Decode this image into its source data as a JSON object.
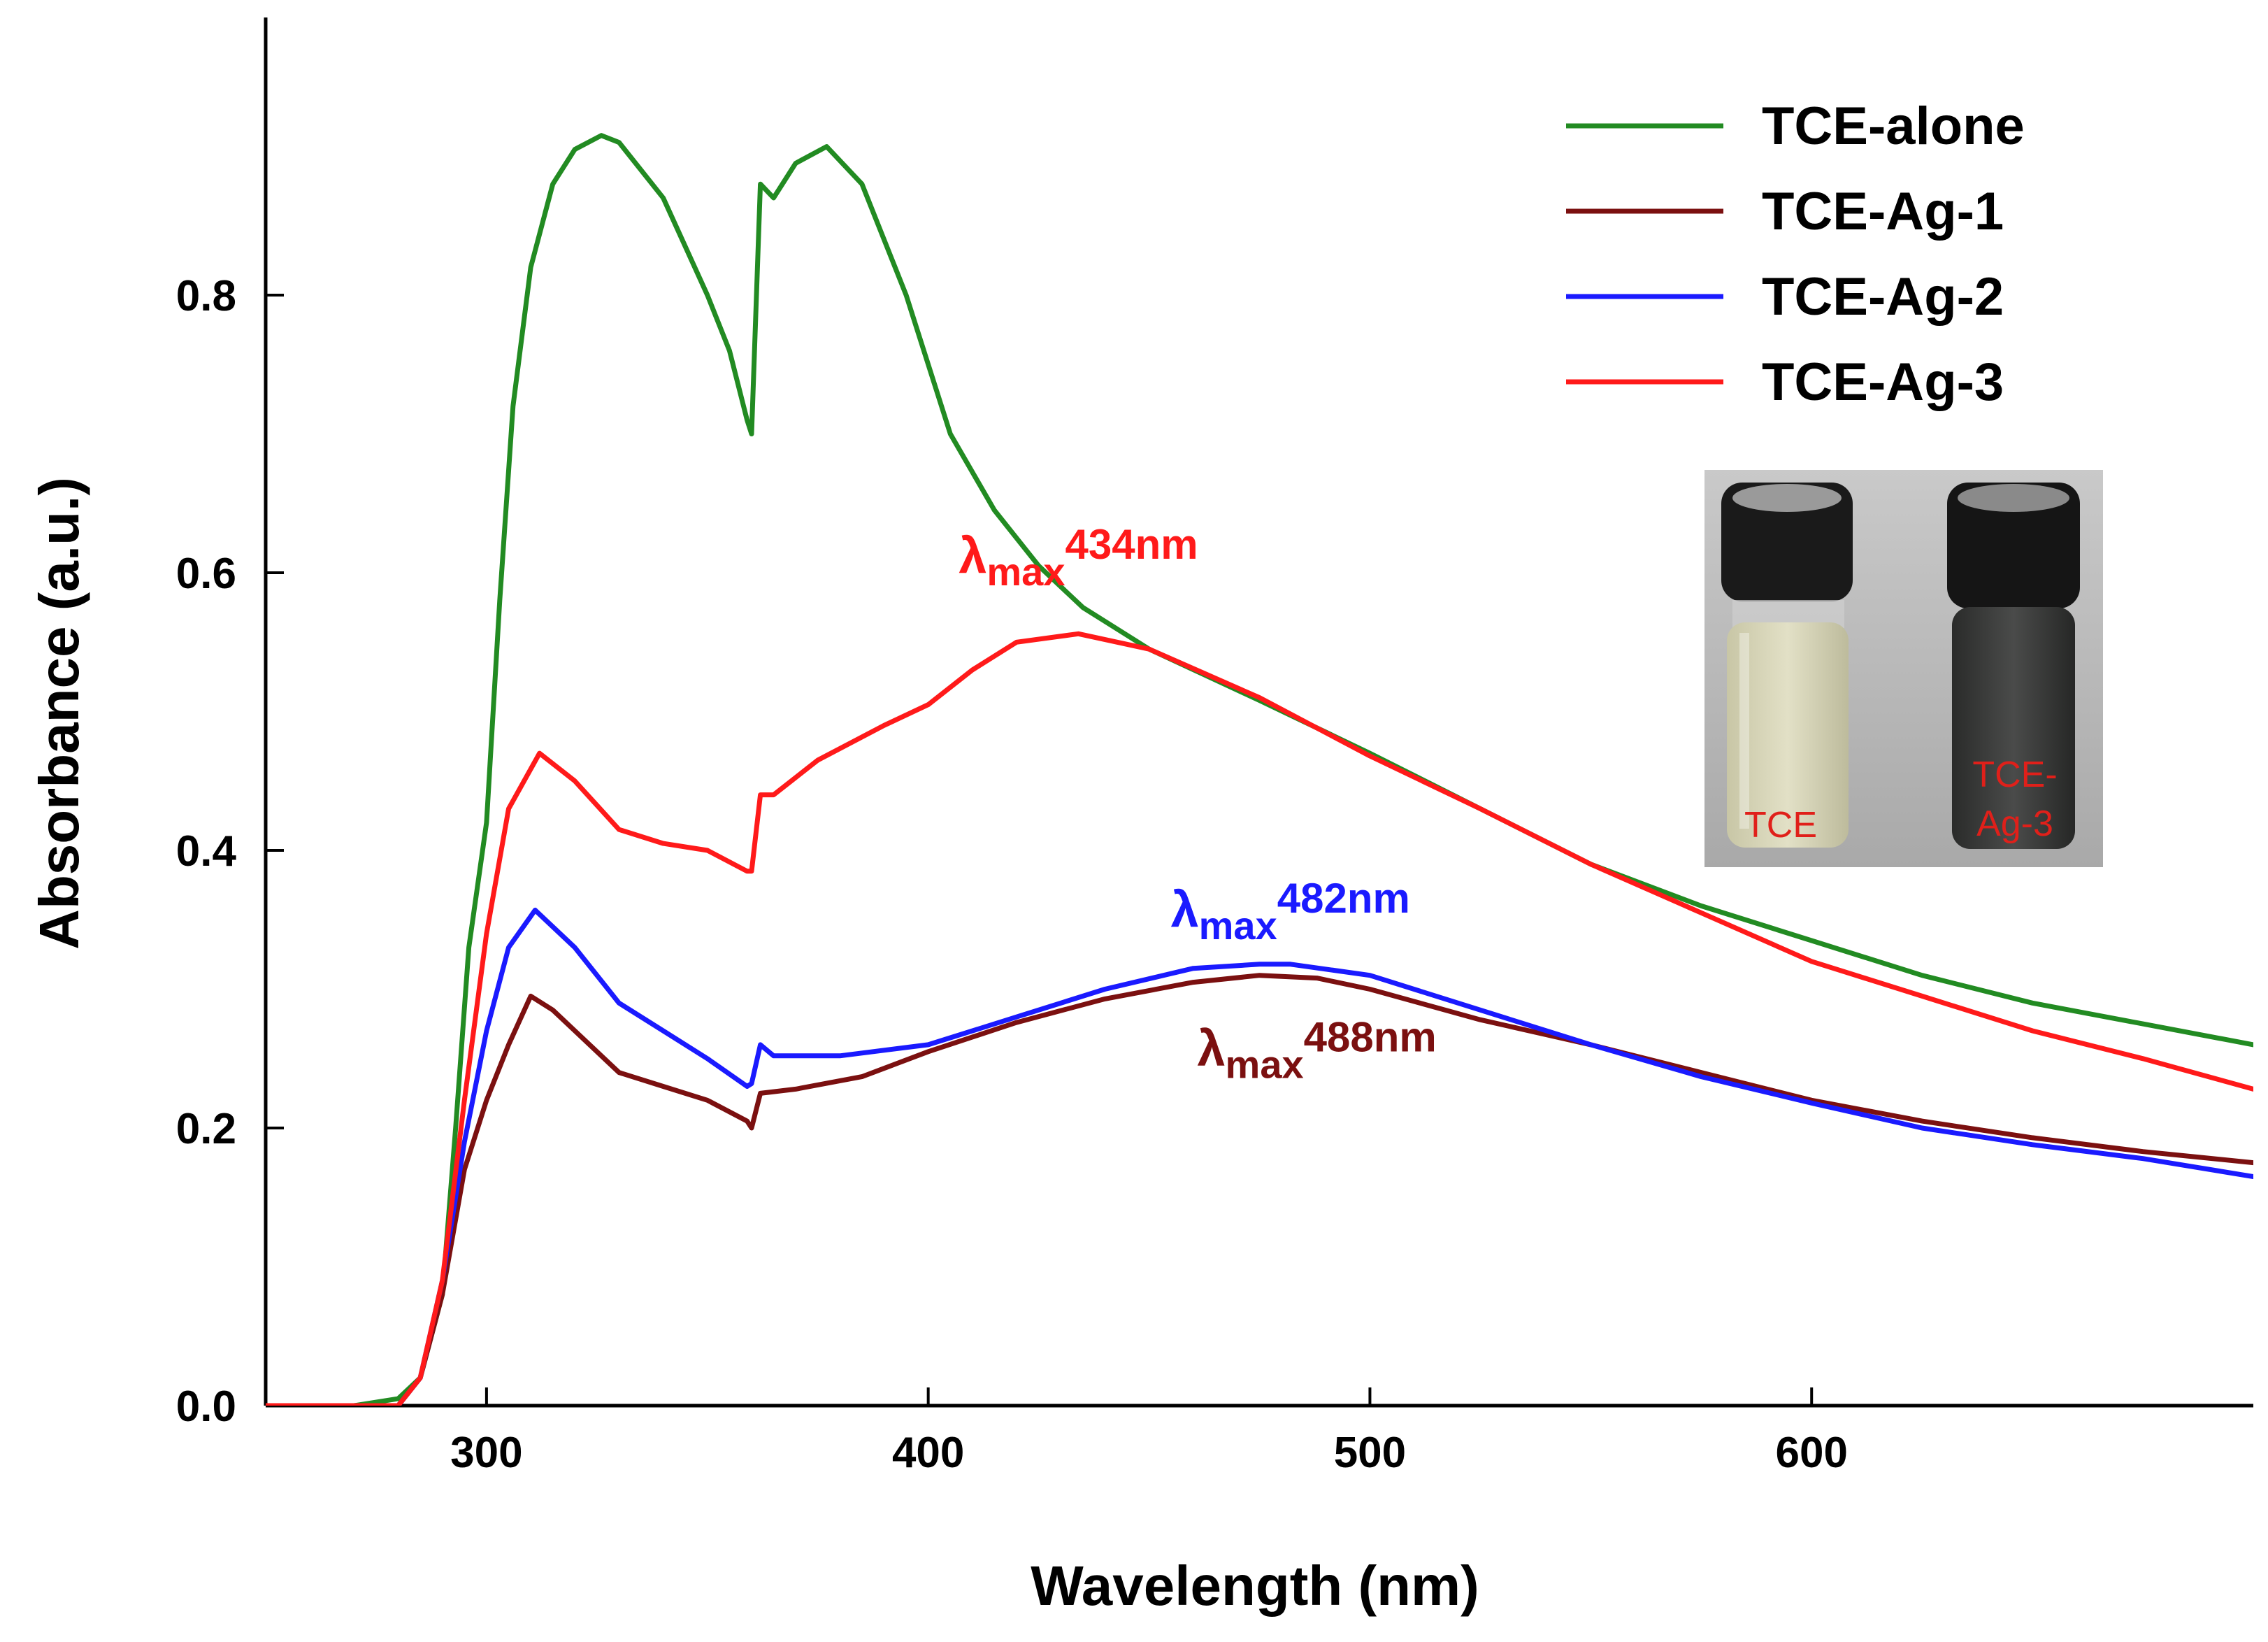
{
  "chart_data": {
    "type": "line",
    "title": "",
    "xlabel": "Wavelength (nm)",
    "ylabel": "Absorbance (a.u.)",
    "xlim": [
      250,
      700
    ],
    "ylim": [
      0,
      1.0
    ],
    "xticks": [
      300,
      400,
      500,
      600
    ],
    "yticks": [
      0.0,
      0.2,
      0.4,
      0.6,
      0.8
    ],
    "xtick_labels": [
      "300",
      "400",
      "500",
      "600"
    ],
    "ytick_labels": [
      "0.0",
      "0.2",
      "0.4",
      "0.6",
      "0.8"
    ],
    "legend_position": "top-right",
    "series": [
      {
        "name": "TCE-alone",
        "color": "#228b22",
        "x": [
          250,
          270,
          280,
          285,
          290,
          293,
          296,
          300,
          303,
          306,
          310,
          315,
          320,
          326,
          330,
          340,
          350,
          355,
          359,
          360,
          362,
          365,
          370,
          377,
          385,
          395,
          405,
          415,
          425,
          435,
          450,
          475,
          500,
          525,
          550,
          575,
          600,
          625,
          650,
          675,
          700
        ],
        "y": [
          0.0,
          0.0,
          0.005,
          0.02,
          0.08,
          0.2,
          0.33,
          0.42,
          0.58,
          0.72,
          0.82,
          0.88,
          0.905,
          0.915,
          0.91,
          0.87,
          0.8,
          0.76,
          0.71,
          0.7,
          0.88,
          0.87,
          0.895,
          0.907,
          0.88,
          0.8,
          0.7,
          0.645,
          0.605,
          0.575,
          0.545,
          0.508,
          0.47,
          0.43,
          0.39,
          0.36,
          0.335,
          0.31,
          0.29,
          0.275,
          0.26
        ]
      },
      {
        "name": "TCE-Ag-1",
        "color": "#7b1010",
        "x": [
          250,
          270,
          280,
          285,
          290,
          295,
          300,
          305,
          310,
          315,
          320,
          330,
          340,
          350,
          359,
          360,
          362,
          370,
          385,
          400,
          420,
          440,
          460,
          475,
          488,
          500,
          525,
          550,
          575,
          600,
          625,
          650,
          675,
          700
        ],
        "y": [
          0.0,
          0.0,
          0.0,
          0.02,
          0.08,
          0.17,
          0.22,
          0.26,
          0.295,
          0.285,
          0.27,
          0.24,
          0.23,
          0.22,
          0.205,
          0.2,
          0.225,
          0.228,
          0.237,
          0.255,
          0.276,
          0.293,
          0.305,
          0.31,
          0.308,
          0.3,
          0.278,
          0.26,
          0.24,
          0.22,
          0.205,
          0.193,
          0.183,
          0.175
        ]
      },
      {
        "name": "TCE-Ag-2",
        "color": "#1a1aff",
        "x": [
          250,
          270,
          280,
          285,
          290,
          295,
          300,
          305,
          311,
          320,
          330,
          340,
          350,
          359,
          360,
          362,
          365,
          380,
          400,
          420,
          440,
          460,
          475,
          482,
          500,
          525,
          550,
          575,
          600,
          625,
          650,
          675,
          700
        ],
        "y": [
          0.0,
          0.0,
          0.0,
          0.02,
          0.09,
          0.19,
          0.27,
          0.33,
          0.357,
          0.33,
          0.29,
          0.27,
          0.25,
          0.23,
          0.232,
          0.26,
          0.252,
          0.252,
          0.26,
          0.28,
          0.3,
          0.315,
          0.318,
          0.318,
          0.31,
          0.285,
          0.26,
          0.237,
          0.218,
          0.2,
          0.188,
          0.178,
          0.165
        ]
      },
      {
        "name": "TCE-Ag-3",
        "color": "#ff1a1a",
        "x": [
          250,
          270,
          280,
          285,
          290,
          295,
          300,
          305,
          312,
          320,
          330,
          340,
          350,
          359,
          360,
          362,
          365,
          375,
          390,
          400,
          410,
          420,
          434,
          450,
          475,
          500,
          525,
          550,
          575,
          600,
          625,
          650,
          675,
          700
        ],
        "y": [
          0.0,
          0.0,
          0.0,
          0.02,
          0.09,
          0.22,
          0.34,
          0.43,
          0.47,
          0.45,
          0.415,
          0.405,
          0.4,
          0.385,
          0.385,
          0.44,
          0.44,
          0.465,
          0.49,
          0.505,
          0.53,
          0.55,
          0.556,
          0.545,
          0.51,
          0.468,
          0.43,
          0.39,
          0.355,
          0.32,
          0.295,
          0.27,
          0.25,
          0.228
        ]
      }
    ],
    "annotations": [
      {
        "symbol": "λ",
        "sub": "max",
        "text": "434nm",
        "color": "#ff1a1a",
        "series": "TCE-Ag-3",
        "x": 434,
        "y": 0.6
      },
      {
        "symbol": "λ",
        "sub": "max",
        "text": "482nm",
        "color": "#1a1aff",
        "series": "TCE-Ag-2",
        "x": 482,
        "y": 0.345
      },
      {
        "symbol": "λ",
        "sub": "max",
        "text": "488nm",
        "color": "#7b1010",
        "series": "TCE-Ag-1",
        "x": 488,
        "y": 0.245
      }
    ],
    "inset": {
      "description_labels": [
        "TCE",
        "TCE-",
        "Ag-3"
      ]
    }
  }
}
